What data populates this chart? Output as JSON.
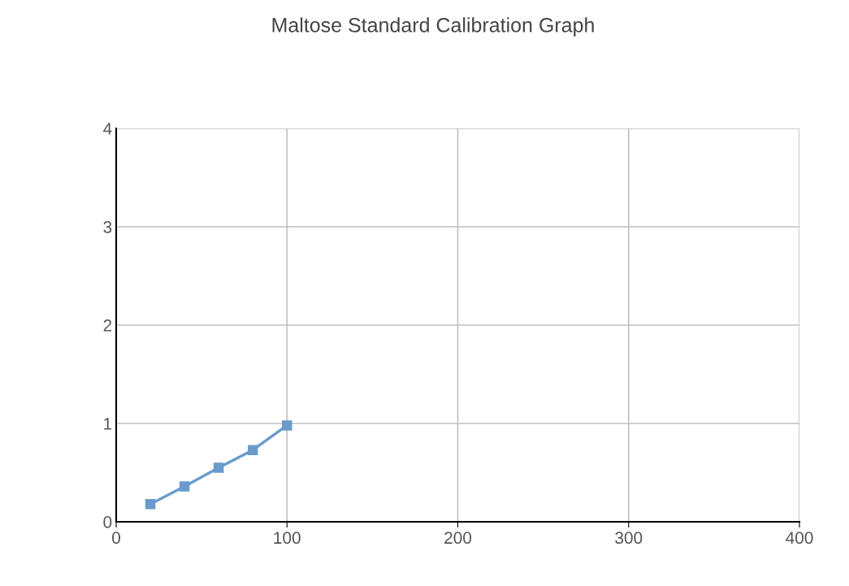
{
  "chart_data": {
    "type": "line",
    "title": "Maltose Standard Calibration Graph",
    "x": [
      20,
      40,
      60,
      80,
      100
    ],
    "series": [
      {
        "color": "#6a9bcc",
        "values": [
          0.18,
          0.36,
          0.55,
          0.73,
          0.98
        ]
      }
    ],
    "xlim": [
      0,
      400
    ],
    "xticks": [
      0,
      100,
      200,
      300,
      400
    ],
    "ylim": [
      0,
      4
    ],
    "yticks": [
      0,
      1,
      2,
      3,
      4
    ],
    "grid": true,
    "marker": "square",
    "line_style": "solid"
  }
}
